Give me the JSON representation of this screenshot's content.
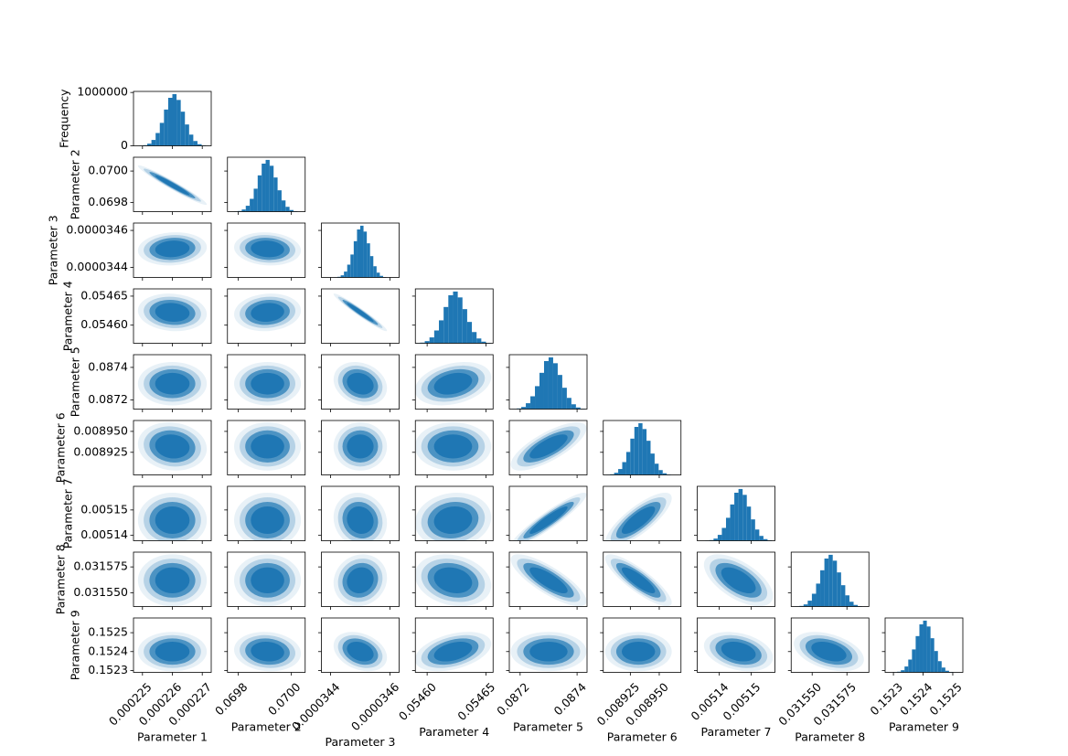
{
  "chart_data": {
    "type": "corner",
    "color": "#1f77b4",
    "ylabel": "Frequency",
    "hist_ylim": [
      0,
      1020000
    ],
    "hist_yticks": [
      0,
      1000000
    ],
    "parameters": [
      {
        "name": "Parameter 1",
        "mean": 0.000226,
        "std": 3.2e-07,
        "xlim": [
          0.0002247,
          0.0002273
        ],
        "xticks": [
          0.000225,
          0.000226,
          0.000227
        ],
        "bins": [
          0.00022488,
          0.00022502,
          0.00022516,
          0.0002253,
          0.00022544,
          0.00022558,
          0.00022572,
          0.00022586,
          0.000226,
          0.00022614,
          0.00022628,
          0.00022642,
          0.00022656,
          0.0002267,
          0.00022684,
          0.00022698,
          0.00022712
        ],
        "counts": [
          3000,
          12000,
          40000,
          110000,
          240000,
          430000,
          680000,
          900000,
          970000,
          860000,
          640000,
          400000,
          210000,
          90000,
          30000,
          8000
        ]
      },
      {
        "name": "Parameter 2",
        "mean": 0.06991,
        "std": 3.5e-05,
        "xlim": [
          0.069759,
          0.070052
        ],
        "xticks": [
          0.0698,
          {
            "value": 0.07,
            "label": "0.0700"
          }
        ],
        "ylim": [
          0.069741,
          0.070088
        ],
        "yticks": [
          0.0698,
          {
            "value": 0.07,
            "label": "0.0700"
          }
        ],
        "bins": [
          0.069783,
          0.069798,
          0.069813,
          0.069828,
          0.069843,
          0.069858,
          0.069873,
          0.069888,
          0.069903,
          0.069918,
          0.069933,
          0.069948,
          0.069963,
          0.069978,
          0.069993,
          0.070008,
          0.070023
        ],
        "counts": [
          3000,
          12000,
          40000,
          110000,
          240000,
          430000,
          680000,
          900000,
          970000,
          860000,
          640000,
          400000,
          210000,
          90000,
          30000,
          8000
        ]
      },
      {
        "name": "Parameter 3",
        "mean": 3.45e-05,
        "std": 2.5e-08,
        "xlim": [
          3.4369e-05,
          3.4631e-05
        ],
        "xticks": [
          3.44e-05,
          3.46e-05
        ],
        "ylim": [
          3.4345e-05,
          3.464e-05
        ],
        "yticks": [
          3.44e-05,
          3.46e-05
        ],
        "bins": [
          3.4412e-05,
          3.4423e-05,
          3.4434e-05,
          3.4445e-05,
          3.4456e-05,
          3.4467e-05,
          3.4478e-05,
          3.4489e-05,
          3.45e-05,
          3.4511e-05,
          3.4522e-05,
          3.4533e-05,
          3.4544e-05,
          3.4555e-05,
          3.4566e-05,
          3.4577e-05,
          3.4588e-05
        ],
        "counts": [
          3000,
          12000,
          40000,
          110000,
          240000,
          430000,
          680000,
          900000,
          970000,
          860000,
          640000,
          400000,
          210000,
          90000,
          30000,
          8000
        ]
      },
      {
        "name": "Parameter 4",
        "mean": 0.054622,
        "std": 9e-06,
        "xlim": [
          0.05459,
          0.054656
        ],
        "xticks": [
          {
            "value": 0.0546,
            "label": "0.05460"
          },
          0.05465
        ],
        "ylim": [
          0.0545688,
          0.0546625
        ],
        "yticks": [
          {
            "value": 0.0546,
            "label": "0.05460"
          },
          0.05465
        ],
        "bins": [
          0.05459,
          0.054594,
          0.054598,
          0.054602,
          0.054606,
          0.05461,
          0.054614,
          0.054618,
          0.054622,
          0.054626,
          0.05463,
          0.054634,
          0.054638,
          0.054642,
          0.054646,
          0.05465,
          0.054654
        ],
        "counts": [
          3000,
          12000,
          40000,
          110000,
          240000,
          430000,
          680000,
          900000,
          970000,
          860000,
          640000,
          400000,
          210000,
          90000,
          30000,
          8000
        ]
      },
      {
        "name": "Parameter 5",
        "mean": 0.0873,
        "std": 3.7e-05,
        "xlim": [
          0.087162,
          0.087435
        ],
        "xticks": [
          0.0872,
          0.0874
        ],
        "ylim": [
          0.087144,
          0.087478
        ],
        "yticks": [
          0.0872,
          0.0874
        ],
        "bins": [
          0.087172,
          0.087188,
          0.087204,
          0.08722,
          0.087236,
          0.087252,
          0.087268,
          0.087284,
          0.0873,
          0.087316,
          0.087332,
          0.087348,
          0.087364,
          0.08738,
          0.087396,
          0.087412,
          0.087428
        ],
        "counts": [
          3000,
          12000,
          40000,
          110000,
          240000,
          430000,
          680000,
          900000,
          970000,
          860000,
          640000,
          400000,
          210000,
          90000,
          30000,
          8000
        ]
      },
      {
        "name": "Parameter 6",
        "mean": 0.008932,
        "std": 8e-06,
        "xlim": [
          0.0089016,
          0.0089688
        ],
        "xticks": [
          0.008925,
          {
            "value": 0.00895,
            "label": "0.008950"
          }
        ],
        "ylim": [
          0.008898,
          0.008963
        ],
        "yticks": [
          0.008925,
          {
            "value": 0.00895,
            "label": "0.008950"
          }
        ],
        "bins": [
          0.008904,
          0.0089075,
          0.008911,
          0.0089145,
          0.008918,
          0.0089215,
          0.008925,
          0.0089285,
          0.008932,
          0.0089355,
          0.008939,
          0.0089425,
          0.008946,
          0.0089495,
          0.008953,
          0.0089565,
          0.00896
        ],
        "counts": [
          3000,
          12000,
          40000,
          110000,
          240000,
          430000,
          680000,
          900000,
          970000,
          860000,
          640000,
          400000,
          210000,
          90000,
          30000,
          8000
        ]
      },
      {
        "name": "Parameter 7",
        "mean": 0.005146,
        "std": 3e-06,
        "xlim": [
          0.0051331,
          0.0051574
        ],
        "xticks": [
          0.00514,
          0.00515
        ],
        "ylim": [
          0.0051379,
          0.0051593
        ],
        "yticks": [
          0.00514,
          0.00515
        ],
        "bins": [
          0.0051356,
          0.0051369,
          0.0051382,
          0.0051395,
          0.0051408,
          0.0051421,
          0.0051434,
          0.0051447,
          0.005146,
          0.0051473,
          0.0051486,
          0.0051499,
          0.0051512,
          0.0051525,
          0.0051538,
          0.0051551,
          0.0051564
        ],
        "counts": [
          3000,
          12000,
          40000,
          110000,
          240000,
          430000,
          680000,
          900000,
          970000,
          860000,
          640000,
          400000,
          210000,
          90000,
          30000,
          8000
        ]
      },
      {
        "name": "Parameter 8",
        "mean": 0.031562,
        "std": 7e-06,
        "xlim": [
          0.0315349,
          0.0315908
        ],
        "xticks": [
          {
            "value": 0.03155,
            "label": "0.031550"
          },
          0.031575
        ],
        "ylim": [
          0.0315366,
          0.0315893
        ],
        "yticks": [
          {
            "value": 0.03155,
            "label": "0.031550"
          },
          0.031575
        ],
        "bins": [
          0.0315378,
          0.0315408,
          0.0315438,
          0.0315468,
          0.0315498,
          0.0315528,
          0.0315558,
          0.0315588,
          0.0315618,
          0.0315648,
          0.0315678,
          0.0315708,
          0.0315738,
          0.0315768,
          0.0315798,
          0.0315828,
          0.0315858
        ],
        "counts": [
          3000,
          12000,
          40000,
          110000,
          240000,
          430000,
          680000,
          900000,
          970000,
          860000,
          640000,
          400000,
          210000,
          90000,
          30000,
          8000
        ]
      },
      {
        "name": "Parameter 9",
        "mean": 0.1524,
        "std": 2.9e-05,
        "xlim": [
          0.152272,
          0.152534
        ],
        "xticks": [
          0.1523,
          0.1524,
          0.1525
        ],
        "ylim": [
          0.15229,
          0.152578
        ],
        "yticks": [
          0.1523,
          0.1524,
          0.1525
        ],
        "bins": [
          0.1523,
          0.1523125,
          0.152325,
          0.1523375,
          0.15235,
          0.1523625,
          0.152375,
          0.1523875,
          0.1524,
          0.1524125,
          0.152425,
          0.1524375,
          0.15245,
          0.1524625,
          0.152475,
          0.1524875,
          0.1525
        ],
        "counts": [
          3000,
          12000,
          40000,
          110000,
          240000,
          430000,
          680000,
          900000,
          970000,
          860000,
          640000,
          400000,
          210000,
          90000,
          30000,
          8000
        ]
      }
    ],
    "correlations": [
      [
        -0.97
      ],
      [
        0.1,
        -0.1
      ],
      [
        -0.1,
        0.1,
        -0.97
      ],
      [
        0,
        0,
        -0.2,
        0.3
      ],
      [
        -0.1,
        0,
        0,
        0,
        0.75
      ],
      [
        0,
        0,
        -0.1,
        0.1,
        0.93,
        0.8
      ],
      [
        0,
        0,
        0.1,
        -0.2,
        -0.8,
        -0.85,
        -0.6
      ],
      [
        0,
        -0.1,
        -0.3,
        0.4,
        0,
        0,
        -0.3,
        -0.4
      ]
    ]
  }
}
